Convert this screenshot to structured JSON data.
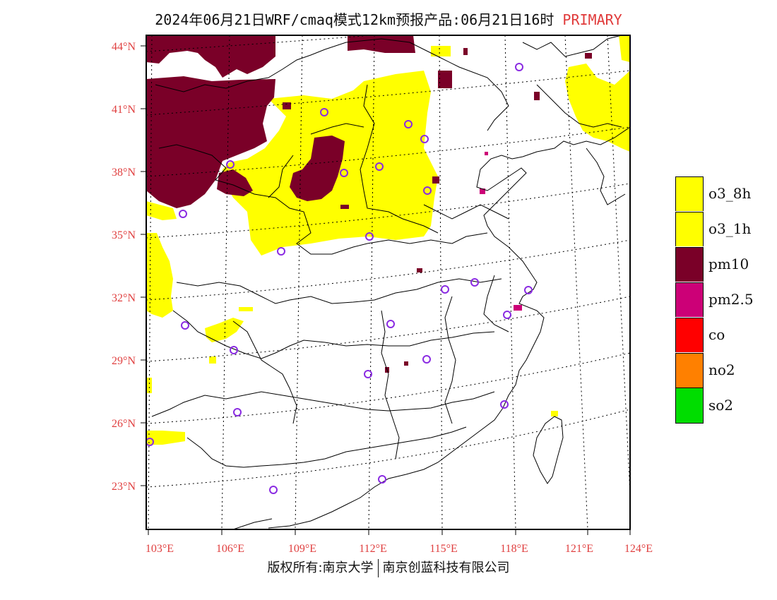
{
  "title": {
    "main": "2024年06月21日WRF/cmaq模式12km预报产品:06月21日16时",
    "tag": "PRIMARY"
  },
  "map": {
    "lat_labels": [
      "44°N",
      "41°N",
      "38°N",
      "35°N",
      "32°N",
      "29°N",
      "26°N",
      "23°N"
    ],
    "lon_labels": [
      "103°E",
      "106°E",
      "109°E",
      "112°E",
      "115°E",
      "118°E",
      "121°E",
      "124°E"
    ]
  },
  "legend": {
    "items": [
      {
        "label": "o3_8h",
        "color": "#ffff00"
      },
      {
        "label": "o3_1h",
        "color": "#ffff00"
      },
      {
        "label": "pm10",
        "color": "#7a0028"
      },
      {
        "label": "pm2.5",
        "color": "#cc0077"
      },
      {
        "label": "co",
        "color": "#ff0000"
      },
      {
        "label": "no2",
        "color": "#ff8000"
      },
      {
        "label": "so2",
        "color": "#00dd00"
      }
    ]
  },
  "footer": {
    "left": "版权所有:南京大学",
    "right": "南京创蓝科技有限公司"
  },
  "colors": {
    "o3": "#ffff00",
    "pm10": "#7a0028",
    "pm25": "#cc0077",
    "station_marker": "#8a2be2",
    "tick_text": "#e04040",
    "primary_tag": "#e03a3a"
  }
}
